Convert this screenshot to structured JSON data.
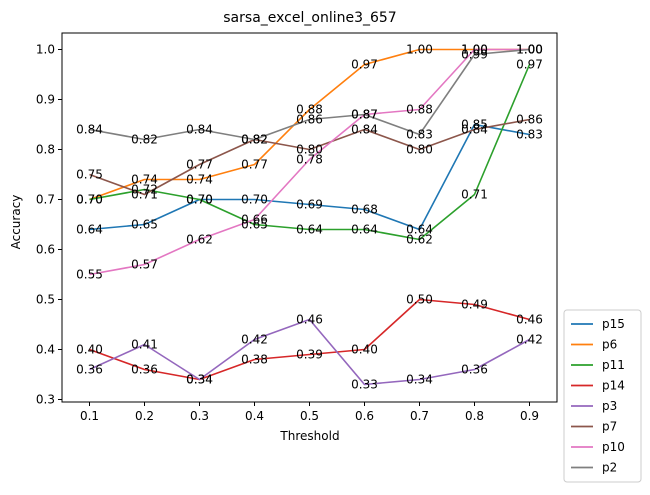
{
  "chart_data": {
    "type": "line",
    "title": "sarsa_excel_online3_657",
    "xlabel": "Threshold",
    "ylabel": "Accuracy",
    "x": [
      0.1,
      0.2,
      0.3,
      0.4,
      0.5,
      0.6,
      0.7,
      0.8,
      0.9
    ],
    "xticks": [
      "0.1",
      "0.2",
      "0.3",
      "0.4",
      "0.5",
      "0.6",
      "0.7",
      "0.8",
      "0.9"
    ],
    "yticks": [
      "0.3",
      "0.4",
      "0.5",
      "0.6",
      "0.7",
      "0.8",
      "0.9",
      "1.0"
    ],
    "xlim": [
      0.05,
      0.95
    ],
    "ylim": [
      0.295,
      1.033
    ],
    "grid": false,
    "legend_position": "outside-bottom-right",
    "series": [
      {
        "name": "p15",
        "color": "#1f77b4",
        "values": [
          0.64,
          0.65,
          0.7,
          0.7,
          0.69,
          0.68,
          0.64,
          0.85,
          0.83
        ],
        "labels": [
          "0.64",
          "0.65",
          "0.70",
          "0.70",
          "0.69",
          "0.68",
          "0.64",
          "0.85",
          "0.83"
        ]
      },
      {
        "name": "p6",
        "color": "#ff7f0e",
        "values": [
          0.7,
          0.74,
          0.74,
          0.77,
          0.88,
          0.97,
          1.0,
          1.0,
          1.0
        ],
        "labels": [
          "0.70",
          "0.74",
          "0.74",
          "0.77",
          "0.88",
          "0.97",
          "1.00",
          "1.00",
          "1.00"
        ]
      },
      {
        "name": "p11",
        "color": "#2ca02c",
        "values": [
          0.7,
          0.72,
          0.7,
          0.65,
          0.64,
          0.64,
          0.62,
          0.71,
          0.97
        ],
        "labels": [
          "0.70",
          "0.72",
          "0.70",
          "0.65",
          "0.64",
          "0.64",
          "0.62",
          "0.71",
          "0.97"
        ]
      },
      {
        "name": "p14",
        "color": "#d62728",
        "values": [
          0.4,
          0.36,
          0.34,
          0.38,
          0.39,
          0.4,
          0.5,
          0.49,
          0.46
        ],
        "labels": [
          "0.40",
          "0.36",
          "0.34",
          "0.38",
          "0.39",
          "0.40",
          "0.50",
          "0.49",
          "0.46"
        ]
      },
      {
        "name": "p3",
        "color": "#9467bd",
        "values": [
          0.36,
          0.41,
          0.34,
          0.42,
          0.46,
          0.33,
          0.34,
          0.36,
          0.42
        ],
        "labels": [
          "0.36",
          "0.41",
          "0.34",
          "0.42",
          "0.46",
          "0.33",
          "0.34",
          "0.36",
          "0.42"
        ]
      },
      {
        "name": "p7",
        "color": "#8c564b",
        "values": [
          0.75,
          0.71,
          0.77,
          0.82,
          0.8,
          0.84,
          0.8,
          0.84,
          0.86
        ],
        "labels": [
          "0.75",
          "0.71",
          "0.77",
          "0.82",
          "0.80",
          "0.84",
          "0.80",
          "0.84",
          "0.86"
        ]
      },
      {
        "name": "p10",
        "color": "#e377c2",
        "values": [
          0.55,
          0.57,
          0.62,
          0.66,
          0.78,
          0.87,
          0.88,
          1.0,
          1.0
        ],
        "labels": [
          "0.55",
          "0.57",
          "0.62",
          "0.66",
          "0.78",
          "0.87",
          "0.88",
          "1.00",
          "1.00"
        ]
      },
      {
        "name": "p2",
        "color": "#7f7f7f",
        "values": [
          0.84,
          0.82,
          0.84,
          0.82,
          0.86,
          0.87,
          0.83,
          0.99,
          1.0
        ],
        "labels": [
          "0.84",
          "0.82",
          "0.84",
          "0.82",
          "0.86",
          "0.87",
          "0.83",
          "0.99",
          "1.00"
        ]
      }
    ]
  }
}
